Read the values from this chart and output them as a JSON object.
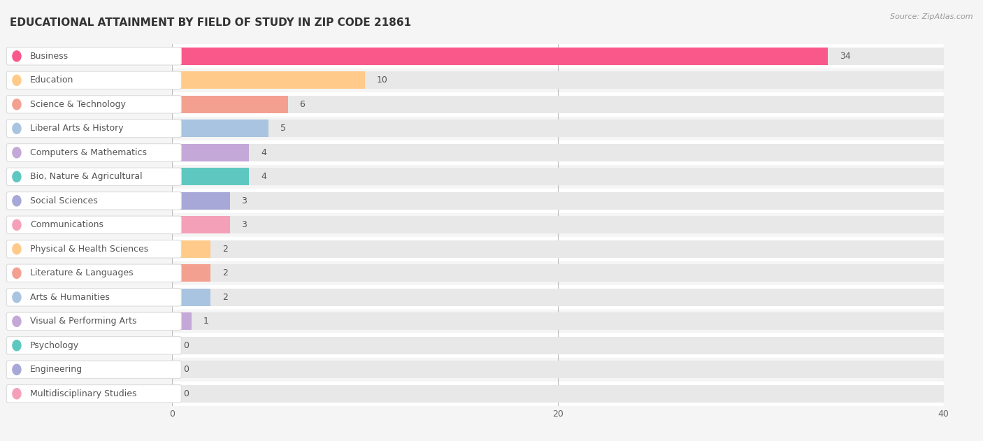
{
  "title": "EDUCATIONAL ATTAINMENT BY FIELD OF STUDY IN ZIP CODE 21861",
  "source": "Source: ZipAtlas.com",
  "categories": [
    "Business",
    "Education",
    "Science & Technology",
    "Liberal Arts & History",
    "Computers & Mathematics",
    "Bio, Nature & Agricultural",
    "Social Sciences",
    "Communications",
    "Physical & Health Sciences",
    "Literature & Languages",
    "Arts & Humanities",
    "Visual & Performing Arts",
    "Psychology",
    "Engineering",
    "Multidisciplinary Studies"
  ],
  "values": [
    34,
    10,
    6,
    5,
    4,
    4,
    3,
    3,
    2,
    2,
    2,
    1,
    0,
    0,
    0
  ],
  "bar_colors": [
    "#F9588A",
    "#FFCA8A",
    "#F4A090",
    "#A8C4E0",
    "#C4A8D8",
    "#5EC8C0",
    "#A8A8D8",
    "#F4A0B8",
    "#FFCA8A",
    "#F4A090",
    "#A8C4E0",
    "#C4A8D8",
    "#5EC8C0",
    "#A8A8D8",
    "#F4A0B8"
  ],
  "bg_color": "#f5f5f5",
  "row_colors": [
    "#ffffff",
    "#f5f5f5"
  ],
  "bar_bg_color": "#e8e8e8",
  "xlim": [
    0,
    40
  ],
  "xticks": [
    0,
    20,
    40
  ],
  "title_fontsize": 11,
  "bar_height": 0.72,
  "value_fontsize": 9,
  "cat_fontsize": 9
}
